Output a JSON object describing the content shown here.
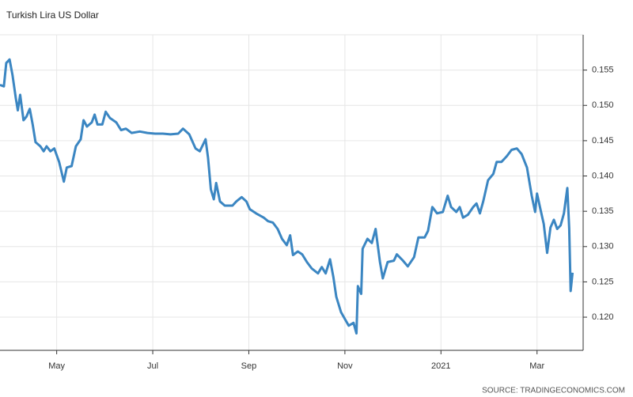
{
  "chart_data": {
    "type": "line",
    "title": "Turkish Lira US Dollar",
    "source": "SOURCE: TRADINGECONOMICS.COM",
    "x": [
      2.82,
      2.9,
      2.95,
      3.02,
      3.08,
      3.15,
      3.19,
      3.24,
      3.31,
      3.37,
      3.44,
      3.5,
      3.56,
      3.66,
      3.73,
      3.79,
      3.87,
      3.95,
      4.05,
      4.15,
      4.21,
      4.31,
      4.4,
      4.5,
      4.56,
      4.63,
      4.73,
      4.79,
      4.85,
      4.95,
      5.02,
      5.11,
      5.24,
      5.34,
      5.44,
      5.56,
      5.73,
      5.89,
      6.05,
      6.21,
      6.37,
      6.53,
      6.63,
      6.76,
      6.89,
      6.98,
      7.1,
      7.15,
      7.21,
      7.27,
      7.32,
      7.4,
      7.5,
      7.66,
      7.74,
      7.85,
      7.95,
      8.02,
      8.15,
      8.31,
      8.4,
      8.5,
      8.6,
      8.69,
      8.79,
      8.86,
      8.92,
      9.02,
      9.11,
      9.21,
      9.31,
      9.44,
      9.52,
      9.6,
      9.69,
      9.76,
      9.82,
      9.92,
      10.02,
      10.08,
      10.18,
      10.24,
      10.27,
      10.34,
      10.37,
      10.47,
      10.56,
      10.64,
      10.73,
      10.79,
      10.89,
      11.02,
      11.08,
      11.21,
      11.31,
      11.44,
      11.53,
      11.66,
      11.73,
      11.82,
      11.92,
      12.04,
      12.14,
      12.21,
      12.32,
      12.39,
      12.46,
      12.56,
      12.67,
      12.74,
      12.81,
      12.88,
      12.98,
      13.09,
      13.16,
      13.26,
      13.37,
      13.47,
      13.58,
      13.68,
      13.79,
      13.89,
      13.96,
      14.0,
      14.07,
      14.14,
      14.21,
      14.28,
      14.35,
      14.42,
      14.49,
      14.56,
      14.63,
      14.67,
      14.7,
      14.74
    ],
    "series": [
      {
        "name": "Turkish Lira US Dollar",
        "color": "#3b86c2",
        "values": [
          0.1529,
          0.1527,
          0.156,
          0.1565,
          0.1543,
          0.151,
          0.1493,
          0.1515,
          0.1479,
          0.1484,
          0.1495,
          0.1473,
          0.1448,
          0.1442,
          0.1435,
          0.1442,
          0.1435,
          0.1439,
          0.142,
          0.1392,
          0.1412,
          0.1414,
          0.1442,
          0.1452,
          0.1479,
          0.147,
          0.1476,
          0.1487,
          0.1473,
          0.1473,
          0.1491,
          0.1482,
          0.1476,
          0.1465,
          0.1467,
          0.1461,
          0.1463,
          0.1461,
          0.146,
          0.146,
          0.1459,
          0.146,
          0.1467,
          0.1459,
          0.1439,
          0.1435,
          0.1452,
          0.1426,
          0.1381,
          0.1367,
          0.139,
          0.1364,
          0.1358,
          0.1358,
          0.1364,
          0.137,
          0.1364,
          0.1353,
          0.1347,
          0.1341,
          0.1336,
          0.1334,
          0.1325,
          0.1311,
          0.1302,
          0.1316,
          0.1288,
          0.1293,
          0.1289,
          0.1278,
          0.1269,
          0.1262,
          0.1271,
          0.1262,
          0.1282,
          0.1257,
          0.1229,
          0.1207,
          0.1195,
          0.1188,
          0.1192,
          0.1177,
          0.1244,
          0.1233,
          0.1297,
          0.1311,
          0.1305,
          0.1325,
          0.1278,
          0.1255,
          0.1278,
          0.128,
          0.1289,
          0.128,
          0.1272,
          0.1285,
          0.1313,
          0.1313,
          0.1322,
          0.1356,
          0.1347,
          0.1349,
          0.1372,
          0.1356,
          0.1349,
          0.1356,
          0.1341,
          0.1345,
          0.1356,
          0.1361,
          0.1347,
          0.1364,
          0.1394,
          0.1403,
          0.142,
          0.142,
          0.1428,
          0.1437,
          0.1439,
          0.1431,
          0.1412,
          0.1372,
          0.1349,
          0.1375,
          0.1353,
          0.1332,
          0.1291,
          0.1327,
          0.1338,
          0.1325,
          0.133,
          0.1347,
          0.1383,
          0.1325,
          0.1237,
          0.1263
        ]
      }
    ],
    "xlim": [
      2.82,
      14.96
    ],
    "xticks": [
      {
        "value": 4,
        "label": "May"
      },
      {
        "value": 6,
        "label": "Jul"
      },
      {
        "value": 8,
        "label": "Sep"
      },
      {
        "value": 10,
        "label": "Nov"
      },
      {
        "value": 12,
        "label": "2021"
      },
      {
        "value": 14,
        "label": "Mar"
      }
    ],
    "ylim": [
      0.1153,
      0.16
    ],
    "yticks": [
      {
        "value": 0.12,
        "label": "0.120"
      },
      0.125,
      {
        "value": 0.13,
        "label": "0.130"
      },
      0.135,
      {
        "value": 0.14,
        "label": "0.140"
      },
      0.145,
      {
        "value": 0.15,
        "label": "0.150"
      },
      0.155
    ],
    "grid": true
  }
}
